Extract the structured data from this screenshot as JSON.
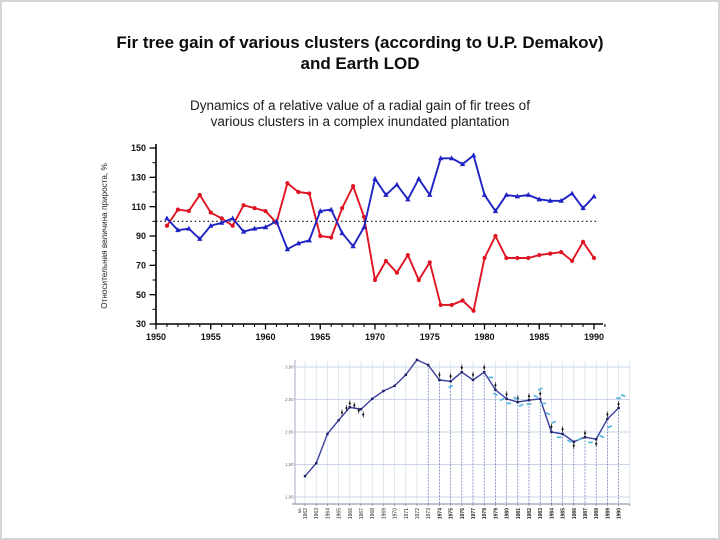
{
  "slide": {
    "title_lines": [
      "Fir tree gain of various clusters (according to U.P. Demakov)",
      "and Earth LOD"
    ],
    "subtitle_lines": [
      "Dynamics of a relative value of a radial gain of fir trees of",
      "various clusters in a complex inundated plantation"
    ]
  },
  "chart_data": [
    {
      "id": "fir-gain",
      "type": "line",
      "title": "Dynamics of a relative value of a radial gain of fir trees of various clusters in a complex inundated plantation",
      "ylabel": "Относительная величина прироста, %",
      "ylim": [
        30,
        150
      ],
      "yticks": [
        30,
        50,
        70,
        90,
        110,
        130,
        150
      ],
      "xticks": [
        1950,
        1955,
        1960,
        1965,
        1970,
        1975,
        1980,
        1985,
        1990
      ],
      "reference_line_y": 100,
      "grid": false,
      "legend_position": "none",
      "x": [
        1951,
        1952,
        1953,
        1954,
        1955,
        1956,
        1957,
        1958,
        1959,
        1960,
        1961,
        1962,
        1963,
        1964,
        1965,
        1966,
        1967,
        1968,
        1969,
        1970,
        1971,
        1972,
        1973,
        1974,
        1975,
        1976,
        1977,
        1978,
        1979,
        1980,
        1981,
        1982,
        1983,
        1984,
        1985,
        1986,
        1987,
        1988,
        1989,
        1990
      ],
      "series": [
        {
          "name": "cluster-red",
          "color": "#e01322",
          "marker": "circle",
          "values": [
            97,
            108,
            107,
            118,
            106,
            102,
            97,
            111,
            109,
            107,
            99,
            126,
            120,
            119,
            90,
            89,
            109,
            124,
            103,
            60,
            73,
            65,
            77,
            60,
            72,
            43,
            43,
            46,
            39,
            75,
            90,
            75,
            75,
            75,
            77,
            78,
            79,
            73,
            86,
            75
          ]
        },
        {
          "name": "cluster-blue",
          "color": "#1f23c4",
          "marker": "triangle",
          "values": [
            102,
            94,
            95,
            88,
            97,
            99,
            102,
            93,
            95,
            96,
            100,
            81,
            85,
            87,
            107,
            108,
            92,
            83,
            96,
            129,
            118,
            125,
            115,
            129,
            118,
            143,
            143,
            139,
            145,
            118,
            107,
            118,
            117,
            118,
            115,
            114,
            114,
            119,
            109,
            117
          ]
        }
      ]
    },
    {
      "id": "earth-lod",
      "type": "line",
      "title": "",
      "ylim": [
        0.9,
        3.3
      ],
      "yticks": [
        3.0,
        2.5,
        2.0,
        1.5,
        1.0
      ],
      "ytick_labels": [
        "3,00",
        "2,50",
        "2,00",
        "1,50",
        "1,00"
      ],
      "x_unit_label": "мс",
      "dropline_from_year": 1973,
      "grid": true,
      "x": [
        1962,
        1963,
        1964,
        1965,
        1966,
        1967,
        1968,
        1969,
        1970,
        1971,
        1972,
        1973,
        1974,
        1975,
        1976,
        1977,
        1978,
        1979,
        1980,
        1981,
        1982,
        1983,
        1984,
        1985,
        1986,
        1987,
        1988,
        1989,
        1990
      ],
      "series": [
        {
          "name": "lod-line",
          "color": "#3a3f9e",
          "marker": "square",
          "values": [
            1.32,
            1.52,
            1.97,
            2.18,
            2.38,
            2.35,
            2.51,
            2.63,
            2.71,
            2.88,
            3.11,
            3.03,
            2.8,
            2.78,
            2.92,
            2.8,
            2.92,
            2.65,
            2.51,
            2.46,
            2.49,
            2.51,
            2.0,
            1.97,
            1.85,
            1.92,
            1.89,
            2.2,
            2.37
          ]
        }
      ],
      "scatter": [
        {
          "name": "black-markers",
          "color": "#111111",
          "points": [
            [
              1965.3,
              2.3
            ],
            [
              1965.7,
              2.37
            ],
            [
              1966,
              2.44
            ],
            [
              1966.4,
              2.41
            ],
            [
              1966.8,
              2.33
            ],
            [
              1967.2,
              2.27
            ],
            [
              1974,
              2.88
            ],
            [
              1975,
              2.86
            ],
            [
              1976,
              2.99
            ],
            [
              1977,
              2.88
            ],
            [
              1978,
              2.99
            ],
            [
              1979,
              2.72
            ],
            [
              1980,
              2.58
            ],
            [
              1981,
              2.52
            ],
            [
              1982,
              2.55
            ],
            [
              1983,
              2.59
            ],
            [
              1984,
              2.08
            ],
            [
              1985,
              2.04
            ],
            [
              1986,
              1.79
            ],
            [
              1987,
              1.98
            ],
            [
              1988,
              1.82
            ],
            [
              1989,
              2.27
            ],
            [
              1990,
              2.43
            ]
          ]
        },
        {
          "name": "cyan-markers",
          "color": "#55b5de",
          "points": [
            [
              1975,
              2.7
            ],
            [
              1978.6,
              2.84
            ],
            [
              1979,
              2.58
            ],
            [
              1979.6,
              2.5
            ],
            [
              1980.2,
              2.44
            ],
            [
              1980.8,
              2.52
            ],
            [
              1981.3,
              2.41
            ],
            [
              1982,
              2.43
            ],
            [
              1982.6,
              2.55
            ],
            [
              1983,
              2.66
            ],
            [
              1983.3,
              2.44
            ],
            [
              1983.7,
              2.28
            ],
            [
              1984.2,
              2.15
            ],
            [
              1984.7,
              1.92
            ],
            [
              1985.6,
              1.86
            ],
            [
              1986.5,
              1.89
            ],
            [
              1987.5,
              1.84
            ],
            [
              1988.5,
              1.93
            ],
            [
              1989.2,
              2.08
            ],
            [
              1990,
              2.52
            ],
            [
              1990.4,
              2.56
            ]
          ]
        }
      ]
    }
  ]
}
